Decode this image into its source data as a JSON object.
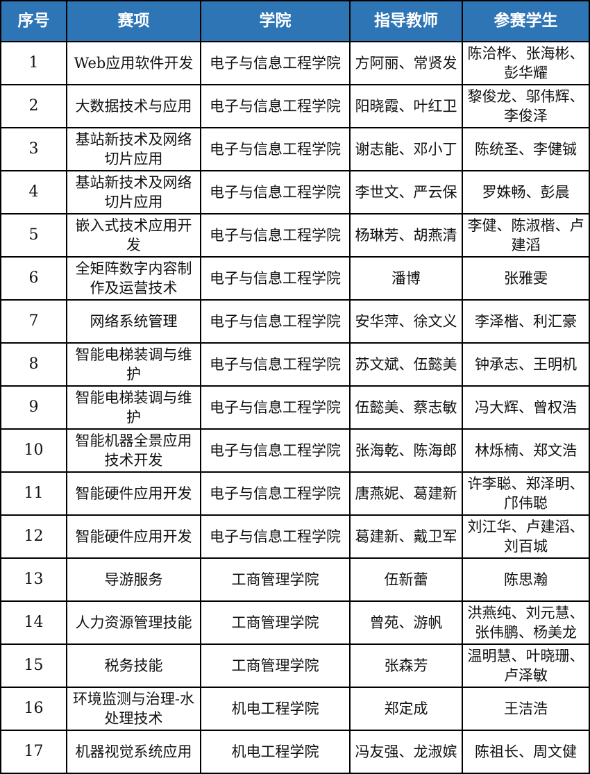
{
  "colors": {
    "header_bg": "#2E75B6",
    "header_text": "#FFFFFF",
    "grid_line": "#000000",
    "row_bg": "#FFFFFF",
    "body_text": "#111111"
  },
  "table": {
    "columns": [
      {
        "key": "no",
        "label": "序号"
      },
      {
        "key": "event",
        "label": "赛项"
      },
      {
        "key": "college",
        "label": "学院"
      },
      {
        "key": "teachers",
        "label": "指导教师"
      },
      {
        "key": "students",
        "label": "参赛学生"
      }
    ],
    "rows": [
      {
        "no": "1",
        "event": "Web应用软件开发",
        "college": "电子与信息工程学院",
        "teachers": "方阿丽、常贤发",
        "students": "陈洽桦、张海彬、彭华耀"
      },
      {
        "no": "2",
        "event": "大数据技术与应用",
        "college": "电子与信息工程学院",
        "teachers": "阳晓霞、叶红卫",
        "students": "黎俊龙、邬伟辉、李俊泽"
      },
      {
        "no": "3",
        "event": "基站新技术及网络切片应用",
        "college": "电子与信息工程学院",
        "teachers": "谢志能、邓小丁",
        "students": "陈统圣、李健铖"
      },
      {
        "no": "4",
        "event": "基站新技术及网络切片应用",
        "college": "电子与信息工程学院",
        "teachers": "李世文、严云保",
        "students": "罗姝畅、彭晨"
      },
      {
        "no": "5",
        "event": "嵌入式技术应用开发",
        "college": "电子与信息工程学院",
        "teachers": "杨琳芳、胡燕清",
        "students": "李健、陈淑楷、卢建滔"
      },
      {
        "no": "6",
        "event": "全矩阵数字内容制作及运营技术",
        "college": "电子与信息工程学院",
        "teachers": "潘博",
        "students": "张雅雯"
      },
      {
        "no": "7",
        "event": "网络系统管理",
        "college": "电子与信息工程学院",
        "teachers": "安华萍、徐文义",
        "students": "李泽楷、利汇豪"
      },
      {
        "no": "8",
        "event": "智能电梯装调与维护",
        "college": "电子与信息工程学院",
        "teachers": "苏文斌、伍懿美",
        "students": "钟承志、王明机"
      },
      {
        "no": "9",
        "event": "智能电梯装调与维护",
        "college": "电子与信息工程学院",
        "teachers": "伍懿美、蔡志敏",
        "students": "冯大辉、曾权浩"
      },
      {
        "no": "10",
        "event": "智能机器全景应用技术开发",
        "college": "电子与信息工程学院",
        "teachers": "张海乾、陈海郎",
        "students": "林烁楠、郑文浩"
      },
      {
        "no": "11",
        "event": "智能硬件应用开发",
        "college": "电子与信息工程学院",
        "teachers": "唐燕妮、葛建新",
        "students": "许李聪、郑泽明、邝伟聪"
      },
      {
        "no": "12",
        "event": "智能硬件应用开发",
        "college": "电子与信息工程学院",
        "teachers": "葛建新、戴卫军",
        "students": "刘江华、卢建滔、刘百城"
      },
      {
        "no": "13",
        "event": "导游服务",
        "college": "工商管理学院",
        "teachers": "伍新蕾",
        "students": "陈思瀚"
      },
      {
        "no": "14",
        "event": "人力资源管理技能",
        "college": "工商管理学院",
        "teachers": "曾苑、游帆",
        "students": "洪燕纯、刘元慧、张伟鹏、杨美龙"
      },
      {
        "no": "15",
        "event": "税务技能",
        "college": "工商管理学院",
        "teachers": "张森芳",
        "students": "温明慧、叶晓珊、卢泽敏"
      },
      {
        "no": "16",
        "event": "环境监测与治理-水处理技术",
        "college": "机电工程学院",
        "teachers": "郑定成",
        "students": "王洁浩"
      },
      {
        "no": "17",
        "event": "机器视觉系统应用",
        "college": "机电工程学院",
        "teachers": "冯友强、龙淑嫔",
        "students": "陈祖长、周文健"
      }
    ]
  }
}
